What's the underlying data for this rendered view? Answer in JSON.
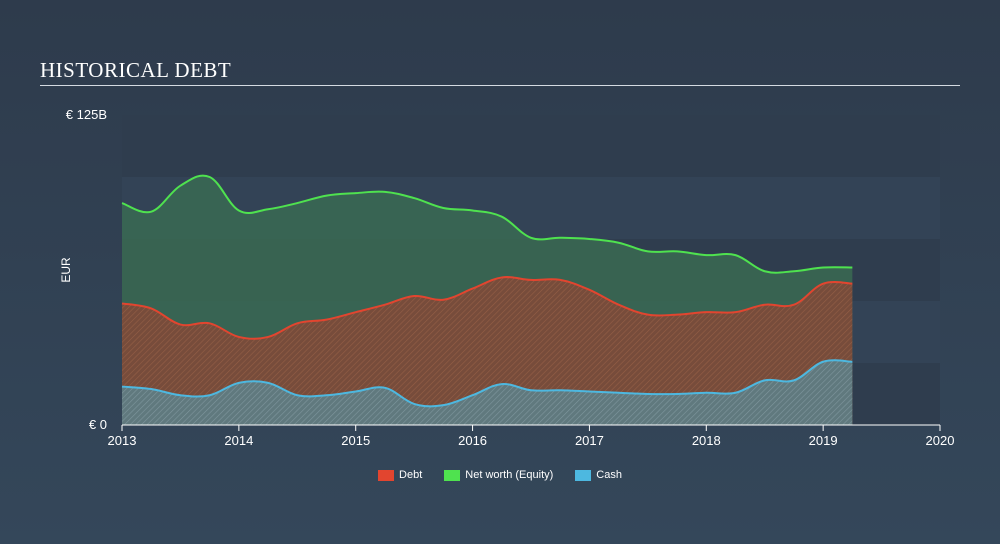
{
  "title": "HISTORICAL DEBT",
  "chart_data": {
    "type": "area",
    "ylabel": "EUR",
    "xlabel": "",
    "ylim": [
      0,
      125
    ],
    "xlim": [
      2013,
      2020
    ],
    "y_ticks": [
      {
        "value": 0,
        "label": "€ 0"
      },
      {
        "value": 125,
        "label": "€ 125B"
      }
    ],
    "x_ticks": [
      "2013",
      "2014",
      "2015",
      "2016",
      "2017",
      "2018",
      "2019",
      "2020"
    ],
    "legend_position": "bottom-center",
    "series": [
      {
        "name": "Debt",
        "color": "#e2452f",
        "points": [
          [
            2013.0,
            49
          ],
          [
            2013.25,
            47
          ],
          [
            2013.5,
            40.5
          ],
          [
            2013.75,
            41
          ],
          [
            2014.0,
            35.5
          ],
          [
            2014.25,
            35.5
          ],
          [
            2014.5,
            41
          ],
          [
            2014.75,
            42.5
          ],
          [
            2015.0,
            45.5
          ],
          [
            2015.25,
            48.5
          ],
          [
            2015.5,
            52
          ],
          [
            2015.75,
            50.5
          ],
          [
            2016.0,
            55
          ],
          [
            2016.25,
            59.5
          ],
          [
            2016.5,
            58.5
          ],
          [
            2016.75,
            58.5
          ],
          [
            2017.0,
            54.5
          ],
          [
            2017.25,
            48.5
          ],
          [
            2017.5,
            44.5
          ],
          [
            2017.75,
            44.5
          ],
          [
            2018.0,
            45.5
          ],
          [
            2018.25,
            45.5
          ],
          [
            2018.5,
            48.5
          ],
          [
            2018.75,
            48.5
          ],
          [
            2019.0,
            57
          ],
          [
            2019.25,
            57
          ]
        ]
      },
      {
        "name": "Net worth (Equity)",
        "color": "#4fe24f",
        "points": [
          [
            2013.0,
            89.5
          ],
          [
            2013.25,
            86
          ],
          [
            2013.5,
            96.5
          ],
          [
            2013.75,
            100
          ],
          [
            2014.0,
            86.5
          ],
          [
            2014.25,
            87
          ],
          [
            2014.5,
            89.5
          ],
          [
            2014.75,
            92.5
          ],
          [
            2015.0,
            93.5
          ],
          [
            2015.25,
            94
          ],
          [
            2015.5,
            91.5
          ],
          [
            2015.75,
            87.5
          ],
          [
            2016.0,
            86.5
          ],
          [
            2016.25,
            84
          ],
          [
            2016.5,
            75.5
          ],
          [
            2016.75,
            75.5
          ],
          [
            2017.0,
            75
          ],
          [
            2017.25,
            73.5
          ],
          [
            2017.5,
            70
          ],
          [
            2017.75,
            70
          ],
          [
            2018.0,
            68.5
          ],
          [
            2018.25,
            68.5
          ],
          [
            2018.5,
            62
          ],
          [
            2018.75,
            62
          ],
          [
            2019.0,
            63.5
          ],
          [
            2019.25,
            63.5
          ]
        ]
      },
      {
        "name": "Cash",
        "color": "#4db8e0",
        "points": [
          [
            2013.0,
            15.5
          ],
          [
            2013.25,
            14.5
          ],
          [
            2013.5,
            12
          ],
          [
            2013.75,
            12
          ],
          [
            2014.0,
            17
          ],
          [
            2014.25,
            17
          ],
          [
            2014.5,
            12
          ],
          [
            2014.75,
            12
          ],
          [
            2015.0,
            13.5
          ],
          [
            2015.25,
            15
          ],
          [
            2015.5,
            8.5
          ],
          [
            2015.75,
            8
          ],
          [
            2016.0,
            12
          ],
          [
            2016.25,
            16.5
          ],
          [
            2016.5,
            14
          ],
          [
            2016.75,
            14
          ],
          [
            2017.0,
            13.5
          ],
          [
            2017.25,
            13
          ],
          [
            2017.5,
            12.5
          ],
          [
            2017.75,
            12.5
          ],
          [
            2018.0,
            13
          ],
          [
            2018.25,
            13
          ],
          [
            2018.5,
            18
          ],
          [
            2018.75,
            18
          ],
          [
            2019.0,
            25.5
          ],
          [
            2019.25,
            25.5
          ]
        ]
      }
    ]
  }
}
